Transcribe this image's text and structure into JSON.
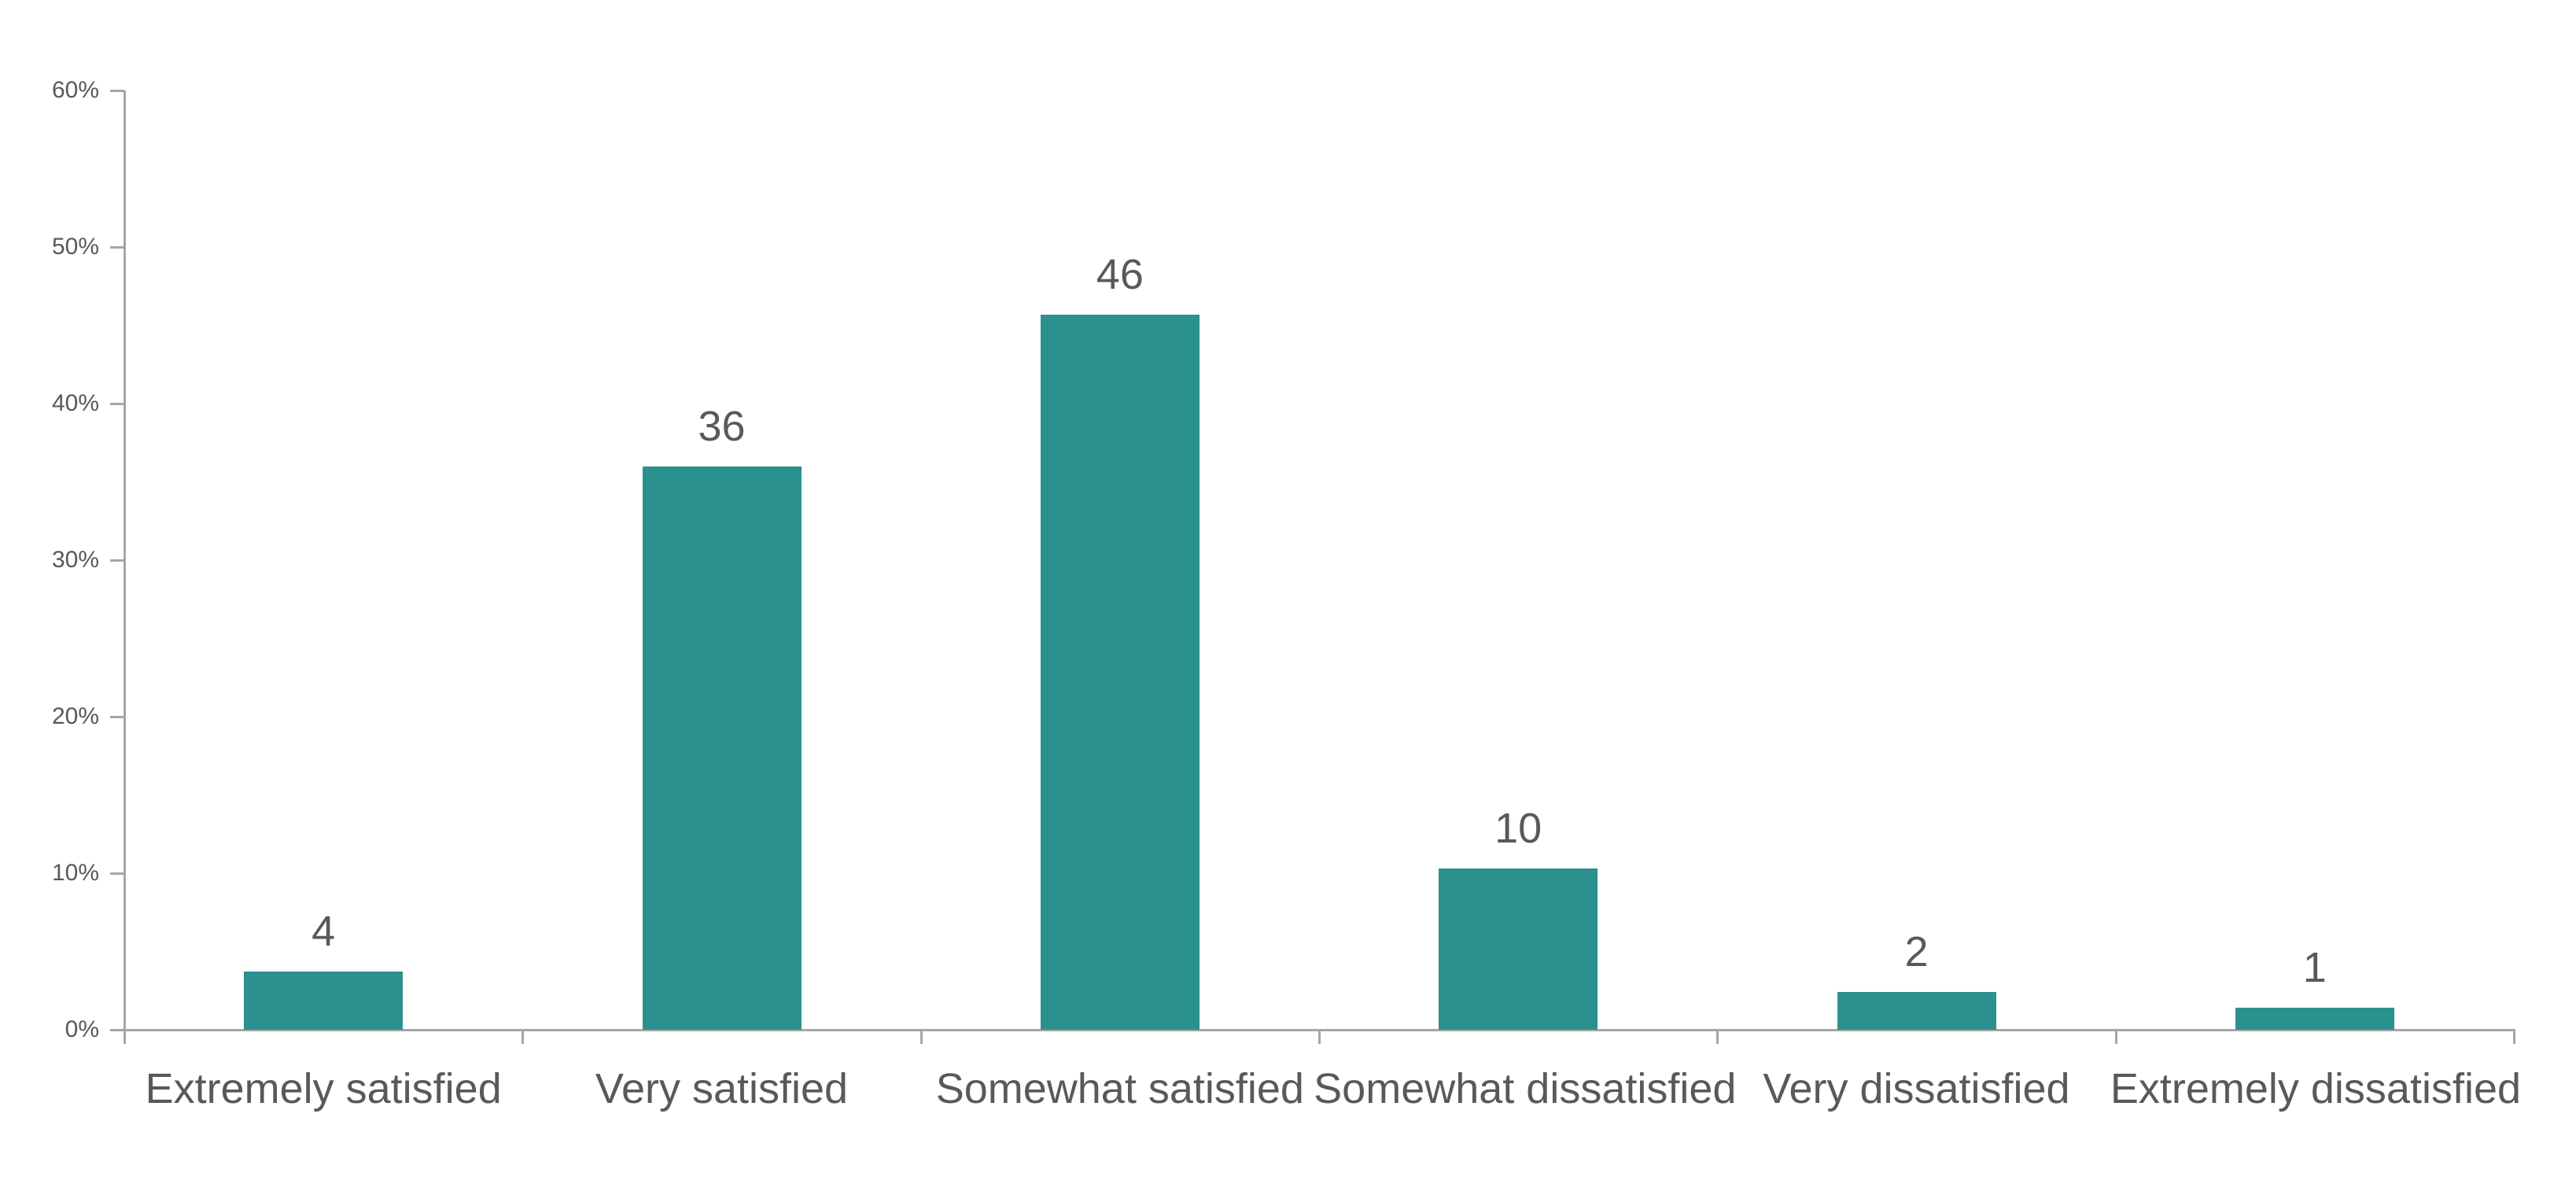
{
  "chart_data": {
    "type": "bar",
    "title": "",
    "xlabel": "",
    "ylabel": "",
    "categories": [
      "Extremely satisfied",
      "Very satisfied",
      "Somewhat satisfied",
      "Somewhat dissatisfied",
      "Very dissatisfied",
      "Extremely dissatisfied"
    ],
    "values": [
      3.7,
      36.0,
      45.7,
      10.3,
      2.4,
      1.4
    ],
    "data_labels": [
      "4",
      "36",
      "46",
      "10",
      "2",
      "1"
    ],
    "ylim": [
      0,
      60
    ],
    "yticks": [
      0,
      10,
      20,
      30,
      40,
      50,
      60
    ],
    "ytick_labels": [
      "0%",
      "10%",
      "20%",
      "30%",
      "40%",
      "50%",
      "60%"
    ],
    "grid": false,
    "legend": null,
    "bar_color": "#2B918F"
  }
}
